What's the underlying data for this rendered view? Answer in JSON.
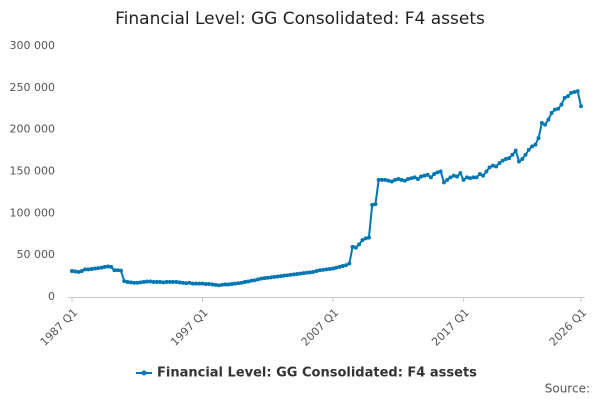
{
  "chart_data": {
    "type": "line",
    "title": "Financial Level: GG Consolidated: F4 assets",
    "source": "Source:",
    "categories": [
      "1987 Q1",
      null,
      null,
      null,
      null,
      null,
      null,
      null,
      null,
      null,
      null,
      null,
      null,
      null,
      null,
      null,
      null,
      null,
      null,
      null,
      null,
      null,
      null,
      null,
      null,
      null,
      null,
      null,
      null,
      null,
      null,
      null,
      null,
      null,
      null,
      null,
      null,
      null,
      null,
      null,
      "1997 Q1",
      null,
      null,
      null,
      null,
      null,
      null,
      null,
      null,
      null,
      null,
      null,
      null,
      null,
      null,
      null,
      null,
      null,
      null,
      null,
      null,
      null,
      null,
      null,
      null,
      null,
      null,
      null,
      null,
      null,
      null,
      null,
      null,
      null,
      null,
      null,
      null,
      null,
      null,
      null,
      "2007 Q1",
      null,
      null,
      null,
      null,
      null,
      null,
      null,
      null,
      null,
      null,
      null,
      null,
      null,
      null,
      null,
      null,
      null,
      null,
      null,
      null,
      null,
      null,
      null,
      null,
      null,
      null,
      null,
      null,
      null,
      null,
      null,
      null,
      null,
      null,
      null,
      null,
      null,
      null,
      null,
      "2017 Q1",
      null,
      null,
      null,
      null,
      null,
      null,
      null,
      null,
      null,
      null,
      null,
      null,
      null,
      null,
      null,
      null,
      null,
      null,
      null,
      null,
      null,
      null,
      null,
      null,
      null,
      null,
      null,
      null,
      null,
      null,
      null,
      null,
      null,
      null,
      null,
      "2026 Q1"
    ],
    "series": [
      {
        "name": "Financial Level: GG Consolidated: F4 assets",
        "color": "#0077b3",
        "values": [
          31000,
          30500,
          30000,
          31000,
          33000,
          33000,
          33500,
          34000,
          34500,
          35000,
          36000,
          36500,
          36000,
          32000,
          32000,
          31500,
          19000,
          18000,
          17500,
          17000,
          17000,
          17500,
          18000,
          18500,
          18500,
          18000,
          18000,
          18000,
          17500,
          18000,
          18000,
          18000,
          18000,
          17500,
          17000,
          16500,
          17000,
          16000,
          16000,
          16000,
          16000,
          15500,
          15500,
          15000,
          14500,
          14000,
          14500,
          15000,
          15000,
          15500,
          16000,
          16500,
          17000,
          18000,
          18500,
          19500,
          20000,
          21000,
          22000,
          22500,
          23000,
          23500,
          24000,
          24500,
          25000,
          25500,
          26000,
          26500,
          27000,
          27500,
          28000,
          28500,
          29000,
          29500,
          30000,
          31000,
          32000,
          32500,
          33000,
          33500,
          34000,
          35000,
          36000,
          37000,
          38000,
          40000,
          60000,
          59000,
          63000,
          68000,
          70000,
          71000,
          110000,
          111000,
          140000,
          140000,
          140000,
          139000,
          138000,
          140000,
          141000,
          140000,
          139000,
          141000,
          142000,
          143000,
          141000,
          144000,
          145000,
          146000,
          143000,
          147000,
          149000,
          150000,
          137000,
          140000,
          143000,
          145000,
          144000,
          148000,
          140000,
          143000,
          142000,
          143000,
          143000,
          147000,
          145000,
          150000,
          155000,
          157000,
          156000,
          160000,
          163000,
          165000,
          166000,
          170000,
          175000,
          162000,
          165000,
          170000,
          176000,
          180000,
          182000,
          190000,
          208000,
          206000,
          212000,
          220000,
          224000,
          225000,
          230000,
          238000,
          240000,
          244000,
          245000,
          246000,
          228000
        ]
      }
    ],
    "ylim": [
      0,
      300000
    ],
    "yticks": [
      0,
      {
        "value": 50000,
        "label": "50 000"
      },
      {
        "value": 100000,
        "label": "100 000"
      },
      {
        "value": 150000,
        "label": "150 000"
      },
      {
        "value": 200000,
        "label": "200 000"
      },
      {
        "value": 250000,
        "label": "250 000"
      },
      {
        "value": 300000,
        "label": "300 000"
      }
    ],
    "grid": false
  }
}
